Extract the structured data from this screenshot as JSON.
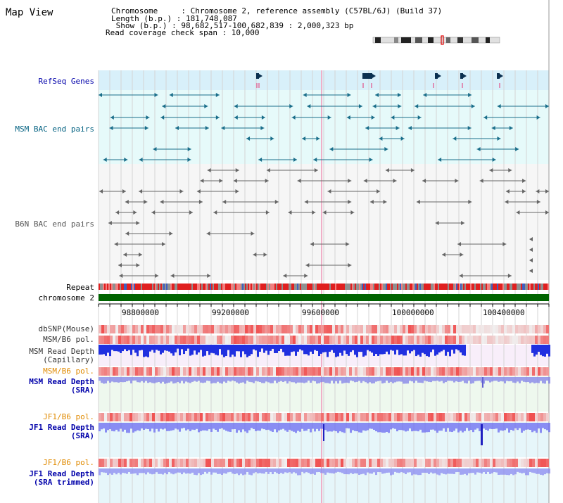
{
  "header": {
    "title": "Map View",
    "info_lines": [
      "Chromosome     : Chromosome 2, reference assembly (C57BL/6J) (Build 37)",
      "Length (b.p.) : 181,748,087",
      " Show (b.p.) : 98,682,517-100,682,839 : 2,000,323 bp",
      "Read coverage check span : 10,000"
    ]
  },
  "tracks": {
    "refseq": "RefSeq Genes",
    "msm_bac": "MSM BAC end pairs",
    "b6n_bac": "B6N BAC end pairs",
    "repeat": "Repeat",
    "chromosome": "chromosome 2",
    "dbsnp": "dbSNP(Mouse)",
    "msm_b6_pol_1": "MSM/B6 pol.",
    "msm_depth_cap_1": "MSM Read Depth",
    "msm_depth_cap_2": "(Capillary)",
    "msm_b6_pol_2": "MSM/B6 pol.",
    "msm_depth_sra_1": "MSM Read Depth",
    "msm_depth_sra_2": "(SRA)",
    "jf1_b6_pol_1": "JF1/B6 pol.",
    "jf1_depth_sra_1": "JF1 Read Depth",
    "jf1_depth_sra_2": "(SRA)",
    "jf1_b6_pol_2": "JF1/B6 pol.",
    "jf1_depth_trim_1": "JF1 Read Depth",
    "jf1_depth_trim_2": "(SRA trimmed)"
  },
  "axis": {
    "ticks": [
      "98800000",
      "99200000",
      "99600000",
      "100000000",
      "100400000"
    ]
  },
  "colors": {
    "refseq_bg": "#d8f0fa",
    "msm_bac_bg": "#e6fafa",
    "gene": "#1a6e8a",
    "bac_b6n": "#666666",
    "chromosome": "#006400",
    "depth_blue": "#6a6af0",
    "pol_red": "#f03030",
    "label_blue": "#0000aa",
    "label_teal": "#006080",
    "label_orange": "#e08a00"
  }
}
